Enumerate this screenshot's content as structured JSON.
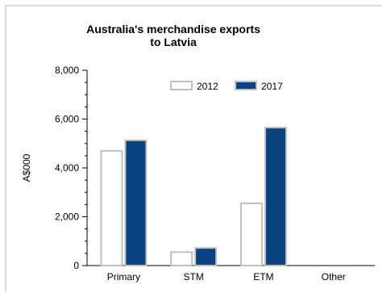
{
  "chart_data": {
    "type": "bar",
    "title": "Australia's merchandise exports to Latvia",
    "ylabel": "A$000",
    "xlabel": "",
    "categories": [
      "Primary",
      "STM",
      "ETM",
      "Other"
    ],
    "series": [
      {
        "name": "2012",
        "values": [
          4700,
          550,
          2550,
          0
        ],
        "color": "#ffffff",
        "stroke": "#c0c0c0"
      },
      {
        "name": "2017",
        "values": [
          5130,
          720,
          5650,
          0
        ],
        "color": "#0a4281",
        "stroke": "#c0c0c0"
      }
    ],
    "ylim": [
      0,
      8000
    ],
    "yticks": [
      0,
      2000,
      4000,
      6000,
      8000
    ],
    "ytick_labels": [
      "0",
      "2,000",
      "4,000",
      "6,000",
      "8,000"
    ],
    "grid": false,
    "legend_position": "top-center"
  }
}
